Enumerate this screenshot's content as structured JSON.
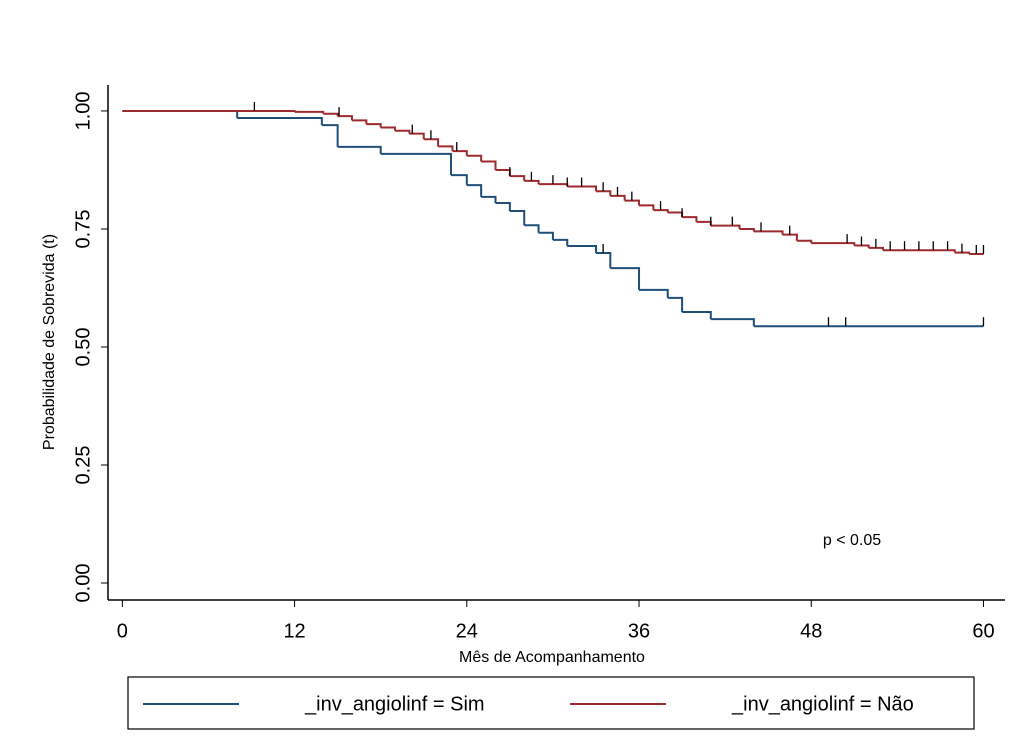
{
  "chart_data": {
    "type": "step",
    "x_label": "Mês de Acompanhamento",
    "y_label": "Probabilidade de Sobrevida (t)",
    "annotation": "p < 0.05",
    "xlim": [
      -1,
      61.5
    ],
    "ylim": [
      -0.036,
      1.055
    ],
    "xticks": [
      0,
      12,
      24,
      36,
      48,
      60
    ],
    "yticks": [
      {
        "value": 0,
        "label": "0.00"
      },
      {
        "value": 0.25,
        "label": "0.25"
      },
      {
        "value": 0.5,
        "label": "0.50"
      },
      {
        "value": 0.75,
        "label": "0.75"
      },
      {
        "value": 1,
        "label": "1.00"
      }
    ],
    "series": [
      {
        "name": "_inv_angiolinf = Sim",
        "color": "#1f4e79",
        "x": [
          0,
          8,
          13.9,
          15,
          18,
          22.9,
          24,
          25,
          26,
          27,
          28,
          29,
          30,
          31,
          33,
          34,
          36,
          38,
          39,
          41,
          44
        ],
        "values": [
          1,
          0.985,
          0.97,
          0.924,
          0.909,
          0.864,
          0.843,
          0.818,
          0.805,
          0.788,
          0.758,
          0.742,
          0.727,
          0.714,
          0.699,
          0.667,
          0.621,
          0.604,
          0.574,
          0.559,
          0.544
        ],
        "censored": [
          33.5,
          49.2,
          50.4,
          60
        ]
      },
      {
        "name": "_inv_angiolinf = Não",
        "color": "#9e2a2f",
        "x": [
          0,
          12,
          14,
          15,
          16,
          17,
          18,
          19,
          20,
          21,
          22,
          23,
          24,
          25,
          26,
          27,
          28,
          29,
          31,
          33,
          34,
          35,
          36,
          37,
          38,
          39,
          40,
          41,
          43,
          44,
          46,
          47,
          48,
          51,
          52,
          53,
          58,
          59
        ],
        "values": [
          1,
          0.998,
          0.994,
          0.989,
          0.98,
          0.972,
          0.965,
          0.958,
          0.952,
          0.94,
          0.925,
          0.915,
          0.905,
          0.893,
          0.875,
          0.862,
          0.852,
          0.845,
          0.84,
          0.83,
          0.82,
          0.81,
          0.8,
          0.79,
          0.785,
          0.775,
          0.765,
          0.757,
          0.75,
          0.745,
          0.738,
          0.725,
          0.72,
          0.715,
          0.71,
          0.705,
          0.7,
          0.697
        ],
        "censored": [
          9.2,
          15.1,
          20.2,
          21.5,
          23.3,
          27,
          28.5,
          30,
          31,
          32,
          33.5,
          34.5,
          35.5,
          37.5,
          39,
          41,
          42.5,
          44.5,
          46.5,
          50.5,
          51.5,
          52.5,
          53.5,
          54.5,
          55.5,
          56.5,
          57.5,
          58.5,
          59.5,
          60
        ]
      }
    ]
  }
}
